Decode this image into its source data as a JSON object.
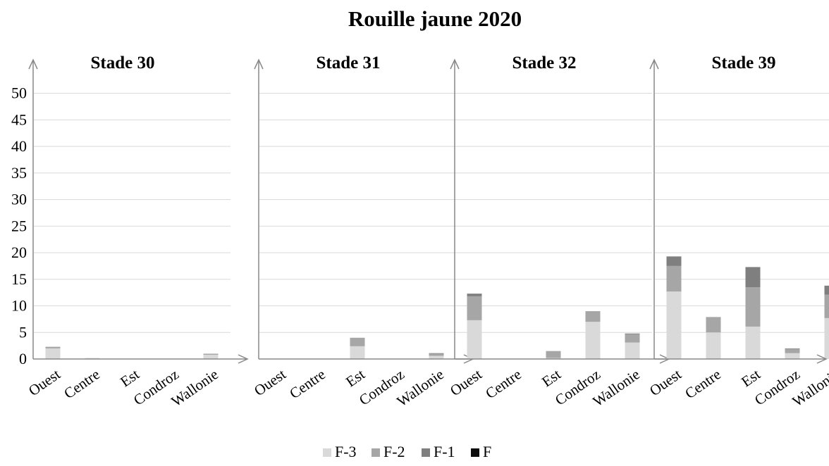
{
  "chart_data": {
    "type": "bar",
    "stacked": true,
    "title": "Rouille jaune 2020",
    "ylim": [
      0,
      50
    ],
    "yticks": [
      0,
      5,
      10,
      15,
      20,
      25,
      30,
      35,
      40,
      45,
      50
    ],
    "grid": true,
    "legend_position": "bottom",
    "categories": [
      "Ouest",
      "Centre",
      "Est",
      "Condroz",
      "Wallonie"
    ],
    "series_meta": [
      {
        "name": "F-3",
        "color": "#d9d9d9"
      },
      {
        "name": "F-2",
        "color": "#a6a6a6"
      },
      {
        "name": "F-1",
        "color": "#7f7f7f"
      },
      {
        "name": "F",
        "color": "#0d0d0d"
      }
    ],
    "panels": [
      {
        "title": "Stade 30",
        "series": [
          {
            "name": "F-3",
            "values": [
              2.0,
              0.2,
              0,
              0,
              0.8
            ]
          },
          {
            "name": "F-2",
            "values": [
              0.3,
              0,
              0,
              0,
              0.2
            ]
          },
          {
            "name": "F-1",
            "values": [
              0,
              0,
              0,
              0,
              0
            ]
          },
          {
            "name": "F",
            "values": [
              0,
              0,
              0,
              0,
              0
            ]
          }
        ]
      },
      {
        "title": "Stade 31",
        "series": [
          {
            "name": "F-3",
            "values": [
              0,
              0,
              2.4,
              0,
              0.6
            ]
          },
          {
            "name": "F-2",
            "values": [
              0,
              0,
              1.6,
              0,
              0.4
            ]
          },
          {
            "name": "F-1",
            "values": [
              0,
              0,
              0,
              0,
              0.1
            ]
          },
          {
            "name": "F",
            "values": [
              0,
              0,
              0,
              0,
              0
            ]
          }
        ]
      },
      {
        "title": "Stade 32",
        "series": [
          {
            "name": "F-3",
            "values": [
              7.3,
              0,
              0.2,
              7.0,
              3.1
            ]
          },
          {
            "name": "F-2",
            "values": [
              4.5,
              0,
              1.3,
              2.0,
              1.6
            ]
          },
          {
            "name": "F-1",
            "values": [
              0.5,
              0,
              0,
              0,
              0.1
            ]
          },
          {
            "name": "F",
            "values": [
              0,
              0,
              0,
              0,
              0
            ]
          }
        ]
      },
      {
        "title": "Stade 39",
        "series": [
          {
            "name": "F-3",
            "values": [
              12.7,
              5.0,
              6.1,
              1.1,
              7.7
            ]
          },
          {
            "name": "F-2",
            "values": [
              4.8,
              2.9,
              7.4,
              0.8,
              4.4
            ]
          },
          {
            "name": "F-1",
            "values": [
              1.8,
              0,
              3.8,
              0.1,
              1.7
            ]
          },
          {
            "name": "F",
            "values": [
              0,
              0,
              0,
              0,
              0
            ]
          }
        ]
      }
    ]
  }
}
